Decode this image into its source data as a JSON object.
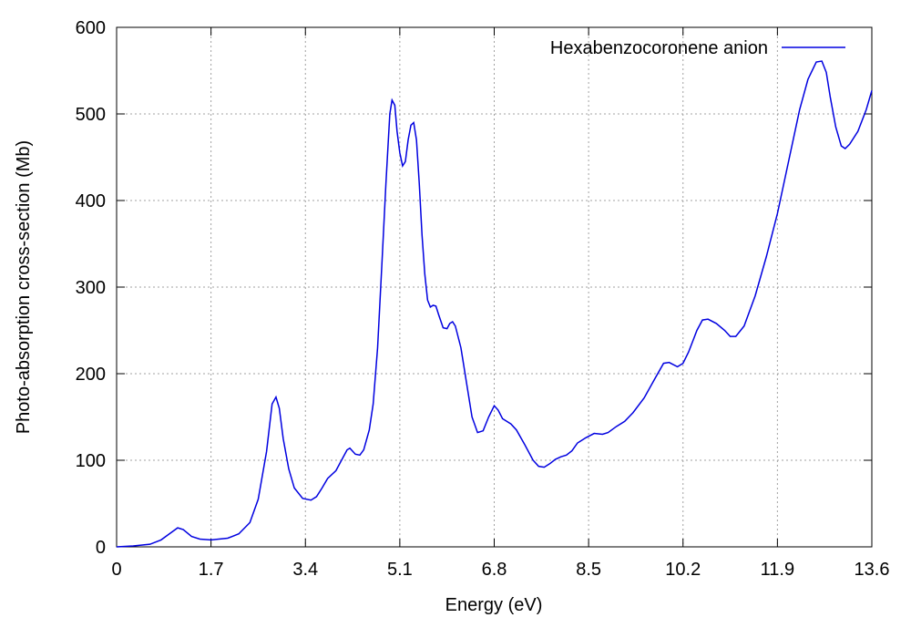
{
  "chart_data": {
    "type": "line",
    "xlabel": "Energy (eV)",
    "ylabel": "Photo-absorption cross-section (Mb)",
    "xlim": [
      0,
      13.6
    ],
    "ylim": [
      0,
      600
    ],
    "xticks": [
      0,
      1.7,
      3.4,
      5.1,
      6.8,
      8.5,
      10.2,
      11.9,
      13.6
    ],
    "yticks": [
      0,
      100,
      200,
      300,
      400,
      500,
      600
    ],
    "grid": true,
    "legend": "upper right",
    "x": [
      0,
      0.3,
      0.6,
      0.8,
      0.95,
      1.1,
      1.2,
      1.35,
      1.5,
      1.7,
      2.0,
      2.2,
      2.4,
      2.55,
      2.7,
      2.8,
      2.87,
      2.93,
      3.0,
      3.1,
      3.2,
      3.35,
      3.5,
      3.6,
      3.7,
      3.8,
      3.95,
      4.05,
      4.15,
      4.2,
      4.3,
      4.38,
      4.45,
      4.55,
      4.62,
      4.7,
      4.78,
      4.85,
      4.92,
      4.96,
      5.01,
      5.05,
      5.1,
      5.15,
      5.2,
      5.25,
      5.3,
      5.35,
      5.4,
      5.45,
      5.5,
      5.55,
      5.6,
      5.65,
      5.7,
      5.75,
      5.8,
      5.88,
      5.95,
      6.0,
      6.05,
      6.1,
      6.2,
      6.3,
      6.4,
      6.5,
      6.6,
      6.7,
      6.8,
      6.87,
      6.95,
      7.1,
      7.2,
      7.35,
      7.5,
      7.6,
      7.7,
      7.8,
      7.9,
      8.0,
      8.1,
      8.2,
      8.3,
      8.45,
      8.6,
      8.75,
      8.85,
      9.0,
      9.15,
      9.3,
      9.5,
      9.7,
      9.85,
      9.95,
      10.1,
      10.2,
      10.3,
      10.45,
      10.55,
      10.65,
      10.8,
      10.95,
      11.05,
      11.15,
      11.3,
      11.5,
      11.7,
      11.9,
      12.1,
      12.3,
      12.45,
      12.6,
      12.7,
      12.78,
      12.85,
      12.95,
      13.05,
      13.12,
      13.2,
      13.35,
      13.5,
      13.6
    ],
    "series": [
      {
        "name": "Hexabenzocoronene anion",
        "color": "#0000e0",
        "values": [
          0,
          1,
          3,
          8,
          15,
          22,
          20,
          12,
          9,
          8,
          10,
          15,
          28,
          55,
          110,
          165,
          173,
          160,
          125,
          90,
          68,
          56,
          54,
          58,
          68,
          79,
          88,
          100,
          112,
          114,
          107,
          106,
          112,
          135,
          165,
          230,
          330,
          420,
          500,
          516,
          510,
          480,
          455,
          440,
          445,
          470,
          487,
          490,
          470,
          420,
          360,
          315,
          285,
          277,
          279,
          278,
          268,
          253,
          252,
          258,
          260,
          255,
          230,
          190,
          150,
          132,
          134,
          150,
          163,
          158,
          148,
          142,
          135,
          118,
          100,
          93,
          92,
          96,
          101,
          104,
          106,
          111,
          120,
          126,
          131,
          130,
          132,
          139,
          145,
          155,
          172,
          195,
          212,
          213,
          208,
          212,
          225,
          250,
          262,
          263,
          258,
          250,
          243,
          243,
          255,
          290,
          335,
          385,
          445,
          505,
          540,
          560,
          561,
          548,
          520,
          485,
          463,
          460,
          465,
          480,
          505,
          527
        ]
      }
    ]
  }
}
